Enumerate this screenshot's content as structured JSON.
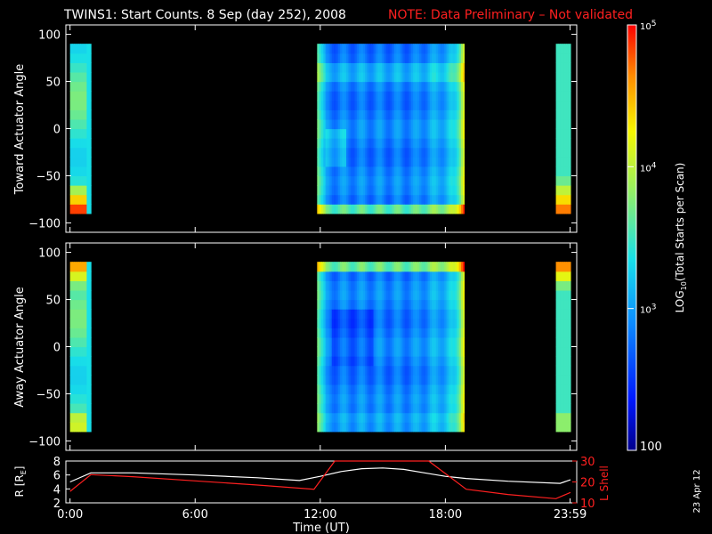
{
  "title": "TWINS1: Start Counts.  8 Sep (day 252), 2008",
  "notice": "NOTE: Data Preliminary – Not validated",
  "date_stamp": "23 Apr 12",
  "colors": {
    "notice": "#ff2020",
    "lshell": "#ff2020",
    "frame": "#ffffff"
  },
  "chart_data": [
    {
      "type": "heatmap",
      "ylabel": "Toward Actuator Angle",
      "ylim": [
        -110,
        110
      ],
      "yticks": [
        100,
        50,
        0,
        -50,
        -100
      ],
      "x_unit": "hours UT",
      "xlim": [
        -0.2,
        24.3
      ],
      "data_intervals": [
        [
          0.0,
          1.0
        ],
        [
          11.85,
          18.9
        ],
        [
          23.3,
          24.0
        ]
      ],
      "angle_range": [
        -90,
        90
      ]
    },
    {
      "type": "heatmap",
      "ylabel": "Away Actuator Angle",
      "ylim": [
        -110,
        110
      ],
      "yticks": [
        100,
        50,
        0,
        -50,
        -100
      ],
      "x_unit": "hours UT",
      "xlim": [
        -0.2,
        24.3
      ],
      "data_intervals": [
        [
          0.0,
          1.0
        ],
        [
          11.85,
          18.9
        ],
        [
          23.3,
          24.0
        ]
      ],
      "angle_range": [
        -90,
        90
      ]
    },
    {
      "type": "line",
      "ylabel_left": "R [R",
      "ylabel_left_sub": "E",
      "ylabel_left_end": "]",
      "ylabel_right": "L Shell",
      "xlabel": "Time (UT)",
      "xlim": [
        -0.2,
        24.3
      ],
      "xtick_values": [
        0,
        6,
        12,
        18,
        23.983
      ],
      "xtick_labels": [
        "0:00",
        "6:00",
        "12:00",
        "18:00",
        "23:59"
      ],
      "ylim_left": [
        2,
        8
      ],
      "yticks_left": [
        8,
        6,
        4,
        2
      ],
      "ylim_right": [
        10,
        30
      ],
      "yticks_right": [
        30,
        20,
        10
      ],
      "series": [
        {
          "axis": "left",
          "x": [
            0,
            1,
            3,
            6,
            9,
            11,
            12,
            13,
            14,
            15,
            16,
            17,
            18,
            19,
            21,
            23.5,
            24
          ],
          "y": [
            5.0,
            6.3,
            6.3,
            6.0,
            5.6,
            5.2,
            5.8,
            6.5,
            6.9,
            7.0,
            6.8,
            6.3,
            5.8,
            5.5,
            5.1,
            4.8,
            5.3
          ]
        },
        {
          "axis": "right",
          "x": [
            0,
            1,
            3,
            6,
            9,
            11.7,
            12.7,
            17.2,
            18.2,
            19,
            21,
            23.3,
            24
          ],
          "y": [
            15.5,
            23.5,
            22.5,
            20.5,
            18.5,
            16.5,
            30,
            30,
            22.5,
            16.5,
            14,
            12,
            15
          ]
        }
      ]
    }
  ],
  "colorbar": {
    "label": "LOG",
    "label_sub": "10",
    "label_end": "(Total Starts per Scan)",
    "range": [
      100,
      100000
    ],
    "ticks": [
      {
        "value": 100,
        "base": "100",
        "exp": ""
      },
      {
        "value": 1000,
        "base": "10",
        "exp": "3"
      },
      {
        "value": 10000,
        "base": "10",
        "exp": "4"
      },
      {
        "value": 100000,
        "base": "10",
        "exp": "5"
      }
    ]
  }
}
